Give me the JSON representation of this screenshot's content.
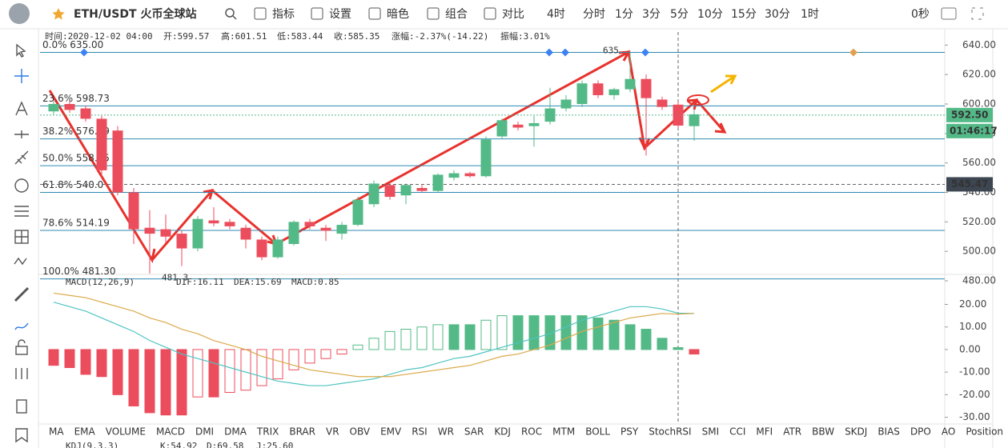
{
  "toolbar": {
    "symbol": "ETH/USDT 火币全球站",
    "tools": [
      "指标",
      "设置",
      "暗色",
      "组合",
      "对比"
    ],
    "intervals": [
      "4时",
      "分时",
      "1分",
      "3分",
      "5分",
      "10分",
      "15分",
      "30分",
      "1时"
    ],
    "active_interval": "4时",
    "countdown": "0秒"
  },
  "info_bar": [
    "时间:2020-12-02 04:00",
    "开:599.57",
    "高:601.51",
    "低:583.44",
    "收:585.35",
    "涨幅:-2.37%(-14.22)",
    "振幅:3.01%"
  ],
  "chart_data": [
    {
      "type": "candlestick",
      "up_color": "#53b987",
      "down_color": "#eb4d5c",
      "open": [
        595,
        600,
        597,
        590,
        582,
        540,
        516,
        515,
        512,
        502,
        521,
        520,
        516,
        508,
        496,
        505,
        520,
        516,
        512,
        518,
        532,
        545,
        538,
        543,
        541,
        550,
        553,
        551,
        578,
        586,
        585,
        588,
        597,
        600,
        614,
        606,
        610,
        617,
        603,
        599.57,
        585
      ],
      "high": [
        602,
        602,
        599,
        592,
        585,
        543,
        528,
        525,
        514,
        524,
        530,
        522,
        518,
        510,
        510,
        521,
        522,
        518,
        520,
        537,
        548,
        548,
        546,
        545,
        553,
        555,
        554,
        578,
        590,
        588,
        592,
        611,
        606,
        616,
        616,
        611,
        635,
        620,
        605,
        601.51,
        596
      ],
      "low": [
        593,
        594,
        588,
        550,
        538,
        505,
        485,
        506,
        490,
        500,
        517,
        515,
        502,
        494,
        495,
        504,
        515,
        507,
        508,
        517,
        530,
        535,
        532,
        540,
        540,
        548,
        550,
        550,
        576,
        582,
        571,
        586,
        595,
        598,
        604,
        603,
        608,
        565,
        596,
        583.44,
        575
      ],
      "close": [
        600,
        596,
        590,
        555,
        540,
        515,
        512,
        510,
        502,
        522,
        519,
        517,
        508,
        496,
        508,
        520,
        517,
        514,
        518,
        535,
        546,
        537,
        545,
        541,
        552,
        553,
        551,
        576,
        589,
        584,
        587,
        597,
        603,
        614,
        606,
        610,
        617,
        604,
        598,
        585.35,
        593
      ],
      "ylim": [
        484.36,
        648.87
      ],
      "yticks": [
        {
          "value": 640,
          "label": "640.00"
        },
        {
          "value": 620,
          "label": "620.00"
        },
        {
          "value": 600,
          "label": "600.00"
        },
        {
          "value": 580,
          "label": "580.00"
        },
        {
          "value": 560,
          "label": "560.00"
        },
        {
          "value": 540,
          "label": "540.00"
        },
        {
          "value": 520,
          "label": "520.00"
        },
        {
          "value": 500,
          "label": "500.00"
        },
        {
          "value": 480,
          "label": "480.00"
        }
      ],
      "fib_levels": [
        {
          "value": 635,
          "label": "0.0% 635.00"
        },
        {
          "value": 598.73,
          "label": "23.6% 598.73"
        },
        {
          "value": 576.29,
          "label": "38.2% 576.29"
        },
        {
          "value": 558.15,
          "label": "50.0% 558.15"
        },
        {
          "value": 540.01,
          "label": "61.8% 540.0"
        },
        {
          "value": 514.19,
          "label": "78.6% 514.19"
        },
        {
          "value": 481.3,
          "label": "100.0% 481.30"
        }
      ],
      "fib_color": "#2f8ab3",
      "annotations": [
        {
          "value": 635,
          "label": "635"
        },
        {
          "value": 481.3,
          "label": "481.3"
        }
      ],
      "last_price": {
        "value": 592.5,
        "label": "592.50"
      },
      "countdown": "01:46:17",
      "crosshair_price": {
        "value": 545.47,
        "label": "545.47"
      }
    },
    {
      "type": "macd",
      "title": "MACD(12,26,9)",
      "legend": [
        "DIF:16.11",
        "DEA:15.69",
        "MACD:0.85"
      ],
      "series": [
        {
          "name": "DIF",
          "color": "#4fc4c1",
          "values": [
            21,
            19,
            17,
            14,
            11,
            8,
            4,
            1,
            -2,
            -4,
            -6,
            -8,
            -10,
            -12,
            -14,
            -15,
            -16,
            -16,
            -15,
            -14,
            -13,
            -11,
            -9,
            -8,
            -6,
            -4,
            -3,
            -1,
            1,
            3,
            5,
            7,
            10,
            13,
            15,
            17,
            19,
            19,
            18,
            16.11,
            16
          ]
        },
        {
          "name": "DEA",
          "color": "#dba94a",
          "values": [
            25,
            24,
            23,
            21,
            19,
            17,
            14,
            12,
            9,
            7,
            4,
            2,
            0,
            -3,
            -5,
            -7,
            -9,
            -10,
            -11,
            -12,
            -12,
            -12,
            -11,
            -10,
            -9,
            -8,
            -7,
            -5,
            -3,
            -2,
            0,
            2,
            5,
            8,
            10,
            12,
            14,
            15,
            16,
            15.69,
            16
          ]
        },
        {
          "name": "MACD",
          "color": "#53b987",
          "neg_color": "#eb4d5c",
          "values": [
            -7,
            -8,
            -11,
            -12,
            -20,
            -25,
            -28,
            -29,
            -29,
            -21,
            -21,
            -19,
            -18,
            -16,
            -13,
            -9,
            -6,
            -4,
            -2,
            2,
            5,
            8,
            9,
            10,
            11,
            11,
            11,
            13,
            15,
            15,
            15,
            15,
            15,
            15,
            14,
            13,
            11,
            9,
            5,
            0.85,
            -2
          ]
        }
      ],
      "ylim": [
        -33,
        33.3
      ],
      "yticks": [
        {
          "value": 20,
          "label": "20.00"
        },
        {
          "value": 10,
          "label": "10.00"
        },
        {
          "value": 0,
          "label": "0.00"
        },
        {
          "value": -10,
          "label": "-10.00"
        },
        {
          "value": -20,
          "label": "-20.00"
        },
        {
          "value": -30,
          "label": "-30.00"
        }
      ]
    }
  ],
  "indicator_tabs": [
    "MA",
    "EMA",
    "VOLUME",
    "MACD",
    "DMI",
    "DMA",
    "TRIX",
    "BRAR",
    "VR",
    "OBV",
    "EMV",
    "RSI",
    "WR",
    "SAR",
    "KDJ",
    "ROC",
    "MTM",
    "BOLL",
    "PSY",
    "StochRSI",
    "SMI",
    "CCI",
    "MFI",
    "ATR",
    "BBW",
    "SKDJ",
    "BIAS",
    "DPO",
    "AO",
    "Position"
  ],
  "active_tab": "MACD",
  "kdj_legend": [
    "KDJ(9,3,3)",
    "K:54.92",
    "D:69.58",
    "J:25.60"
  ]
}
